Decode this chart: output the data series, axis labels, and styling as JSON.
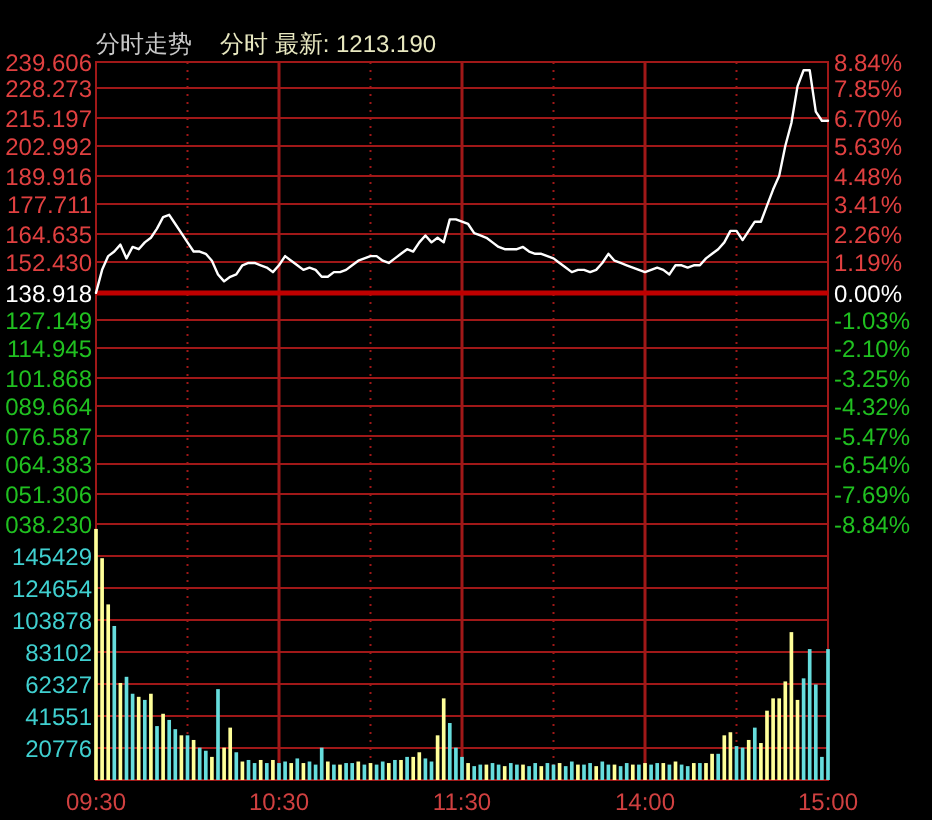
{
  "chart_data": [
    {
      "type": "line",
      "title": "分时走势",
      "subtitle": "分时 最新: 1213.190",
      "categories": [
        null,
        null,
        null,
        null,
        null,
        null,
        null,
        null,
        null,
        null,
        null,
        null,
        null,
        null,
        null,
        null,
        null,
        null,
        null,
        null,
        null,
        null,
        null,
        null,
        null,
        null,
        null,
        null,
        null,
        null,
        null,
        null,
        null,
        null,
        null,
        null,
        null,
        null,
        null,
        null,
        null,
        null,
        null,
        null,
        null,
        null,
        null,
        null,
        null,
        null,
        null,
        null,
        null,
        null,
        null,
        null,
        null,
        null,
        null,
        null,
        null,
        null,
        null,
        null,
        null,
        null,
        null,
        null,
        null,
        null,
        null,
        null,
        null,
        null,
        null,
        null,
        null,
        null,
        null,
        null,
        null,
        null,
        null,
        null,
        null,
        null,
        null,
        null,
        null,
        null,
        null,
        null,
        null,
        null,
        null,
        null,
        null,
        null,
        null,
        null,
        null,
        null,
        null,
        null,
        null,
        null,
        null,
        null,
        null,
        null,
        null,
        null,
        null,
        null,
        null,
        null,
        null,
        null,
        null,
        null,
        null
      ],
      "ylim": [
        38.23,
        239.606
      ],
      "yticks": [
        239.606,
        228.273,
        215.197,
        202.992,
        189.916,
        177.711,
        164.635,
        {
          "value": 152.43,
          "label": "152.430"
        },
        138.918,
        127.149,
        114.945,
        101.868,
        {
          "value": 89.664,
          "label": "089.664"
        },
        {
          "value": 76.587,
          "label": "076.587"
        },
        {
          "value": 64.383,
          "label": "064.383"
        },
        {
          "value": 51.306,
          "label": "051.306"
        },
        {
          "value": 38.23,
          "label": "038.230"
        }
      ],
      "y2lim": [
        -8.84,
        8.84
      ],
      "y2ticks": [
        {
          "value": 8.84,
          "label": "8.84%"
        },
        {
          "value": 7.85,
          "label": "7.85%"
        },
        {
          "value": 6.7,
          "label": "6.70%"
        },
        {
          "value": 5.63,
          "label": "5.63%"
        },
        {
          "value": 4.48,
          "label": "4.48%"
        },
        {
          "value": 3.41,
          "label": "3.41%"
        },
        {
          "value": 2.26,
          "label": "2.26%"
        },
        {
          "value": 1.19,
          "label": "1.19%"
        },
        {
          "value": 0,
          "label": "0.00%"
        },
        {
          "value": -1.03,
          "label": "-1.03%"
        },
        {
          "value": -2.1,
          "label": "-2.10%"
        },
        {
          "value": -3.25,
          "label": "-3.25%"
        },
        {
          "value": -4.32,
          "label": "-4.32%"
        },
        {
          "value": -5.47,
          "label": "-5.47%"
        },
        {
          "value": -6.54,
          "label": "-6.54%"
        },
        {
          "value": -7.69,
          "label": "-7.69%"
        },
        {
          "value": -8.84,
          "label": "-8.84%"
        }
      ],
      "tick_labels": "y",
      "grid": true,
      "ref_lines": [
        {
          "axis": "y",
          "value": 138.918,
          "color": "#c00000"
        }
      ],
      "series": [
        {
          "color": "#ffffff",
          "values": [
            139,
            149,
            155,
            157,
            160,
            154,
            159,
            158,
            161,
            163,
            167,
            172,
            173,
            169,
            165,
            161,
            157,
            157,
            156,
            153,
            147,
            144,
            146,
            147,
            151,
            152,
            152,
            151,
            150,
            148,
            151,
            155,
            153,
            151,
            149,
            150,
            149,
            146,
            146,
            148,
            148,
            149,
            151,
            153,
            154,
            155,
            155,
            153,
            152,
            154,
            156,
            158,
            157,
            161,
            164,
            161,
            163,
            161,
            171,
            171,
            170,
            169,
            165,
            164,
            163,
            161,
            159,
            158,
            158,
            158,
            159,
            157,
            156,
            156,
            155,
            154,
            152,
            150,
            148,
            149,
            149,
            148,
            149,
            152,
            156,
            153,
            152,
            151,
            150,
            149,
            148,
            149,
            150,
            149,
            147,
            151,
            151,
            150,
            151,
            151,
            154,
            156,
            158,
            161,
            166,
            166,
            162,
            166,
            170,
            170,
            177,
            184,
            190,
            203,
            213,
            229,
            236,
            236,
            218,
            214,
            214
          ]
        }
      ]
    },
    {
      "type": "bar",
      "categories": [
        "09:30",
        null,
        null,
        null,
        null,
        null,
        null,
        null,
        null,
        null,
        null,
        null,
        null,
        null,
        null,
        null,
        null,
        null,
        null,
        null,
        null,
        null,
        null,
        null,
        null,
        null,
        null,
        null,
        null,
        null,
        "10:30",
        null,
        null,
        null,
        null,
        null,
        null,
        null,
        null,
        null,
        null,
        null,
        null,
        null,
        null,
        null,
        null,
        null,
        null,
        null,
        null,
        null,
        null,
        null,
        null,
        null,
        null,
        null,
        null,
        null,
        "11:30",
        null,
        null,
        null,
        null,
        null,
        null,
        null,
        null,
        null,
        null,
        null,
        null,
        null,
        null,
        null,
        null,
        null,
        null,
        null,
        null,
        null,
        null,
        null,
        null,
        null,
        null,
        null,
        null,
        null,
        "14:00",
        null,
        null,
        null,
        null,
        null,
        null,
        null,
        null,
        null,
        null,
        null,
        null,
        null,
        null,
        null,
        null,
        null,
        null,
        null,
        null,
        null,
        null,
        null,
        null,
        null,
        null,
        null,
        null,
        null,
        "15:00"
      ],
      "ylim": [
        0,
        166204
      ],
      "yticks": [
        20776,
        41551,
        62327,
        83102,
        103878,
        124654,
        145429
      ],
      "grid": true,
      "values": [
        163000,
        144000,
        114000,
        100000,
        63000,
        67000,
        56000,
        54000,
        52000,
        56000,
        35000,
        43000,
        39000,
        33000,
        29000,
        29000,
        26000,
        21000,
        19000,
        15000,
        59000,
        21000,
        34000,
        18000,
        12000,
        13000,
        11000,
        13000,
        11000,
        13000,
        11000,
        12000,
        11000,
        14000,
        11000,
        12000,
        10000,
        21000,
        12000,
        10000,
        10000,
        11000,
        11000,
        12000,
        10000,
        11000,
        10000,
        12000,
        11000,
        13000,
        13000,
        15000,
        15000,
        18000,
        14000,
        12000,
        29000,
        53000,
        37000,
        21000,
        15000,
        11000,
        9000,
        10000,
        10000,
        11000,
        10000,
        9000,
        11000,
        10000,
        10000,
        9000,
        11000,
        9000,
        11000,
        10000,
        11000,
        9000,
        12000,
        10000,
        10000,
        11000,
        9000,
        12000,
        10000,
        10000,
        9000,
        11000,
        10000,
        10000,
        11000,
        10000,
        11000,
        11000,
        10000,
        12000,
        10000,
        9000,
        11000,
        11000,
        11000,
        17000,
        17000,
        29000,
        31000,
        22000,
        21000,
        26000,
        34000,
        24000,
        45000,
        53000,
        53000,
        64000,
        96000,
        52000,
        66000,
        85000,
        62000,
        15000,
        85000
      ],
      "colors": [
        "#ffff99",
        "#ffff99",
        "#ffff99",
        "#66dddd",
        "#ffff99",
        "#66dddd",
        "#66dddd",
        "#ffff99",
        "#66dddd",
        "#ffff99",
        "#66dddd",
        "#ffff99",
        "#66dddd",
        "#66dddd",
        "#ffff99",
        "#66dddd",
        "#ffff99",
        "#66dddd",
        "#66dddd",
        "#ffff99",
        "#66dddd",
        "#ffff99",
        "#ffff99",
        "#66dddd",
        "#ffff99",
        "#66dddd",
        "#66dddd",
        "#ffff99",
        "#66dddd",
        "#ffff99",
        "#66dddd",
        "#66dddd",
        "#ffff99",
        "#66dddd",
        "#ffff99",
        "#66dddd",
        "#66dddd",
        "#66dddd",
        "#ffff99",
        "#66dddd",
        "#ffff99",
        "#66dddd",
        "#66dddd",
        "#ffff99",
        "#66dddd",
        "#ffff99",
        "#66dddd",
        "#66dddd",
        "#ffff99",
        "#66dddd",
        "#ffff99",
        "#66dddd",
        "#ffff99",
        "#ffff99",
        "#66dddd",
        "#66dddd",
        "#ffff99",
        "#ffff99",
        "#66dddd",
        "#66dddd",
        "#66dddd",
        "#ffff99",
        "#66dddd",
        "#66dddd",
        "#ffff99",
        "#66dddd",
        "#66dddd",
        "#ffff99",
        "#66dddd",
        "#66dddd",
        "#ffff99",
        "#66dddd",
        "#66dddd",
        "#ffff99",
        "#66dddd",
        "#66dddd",
        "#ffff99",
        "#66dddd",
        "#66dddd",
        "#ffff99",
        "#66dddd",
        "#66dddd",
        "#ffff99",
        "#66dddd",
        "#66dddd",
        "#ffff99",
        "#66dddd",
        "#66dddd",
        "#ffff99",
        "#66dddd",
        "#ffff99",
        "#66dddd",
        "#66dddd",
        "#ffff99",
        "#66dddd",
        "#ffff99",
        "#66dddd",
        "#66dddd",
        "#ffff99",
        "#66dddd",
        "#ffff99",
        "#ffff99",
        "#66dddd",
        "#ffff99",
        "#ffff99",
        "#66dddd",
        "#66dddd",
        "#ffff99",
        "#66dddd",
        "#ffff99",
        "#ffff99",
        "#ffff99",
        "#ffff99",
        "#ffff99",
        "#ffff99",
        "#ffff99",
        "#66dddd",
        "#66dddd",
        "#66dddd",
        "#66dddd",
        "#66dddd"
      ]
    }
  ]
}
